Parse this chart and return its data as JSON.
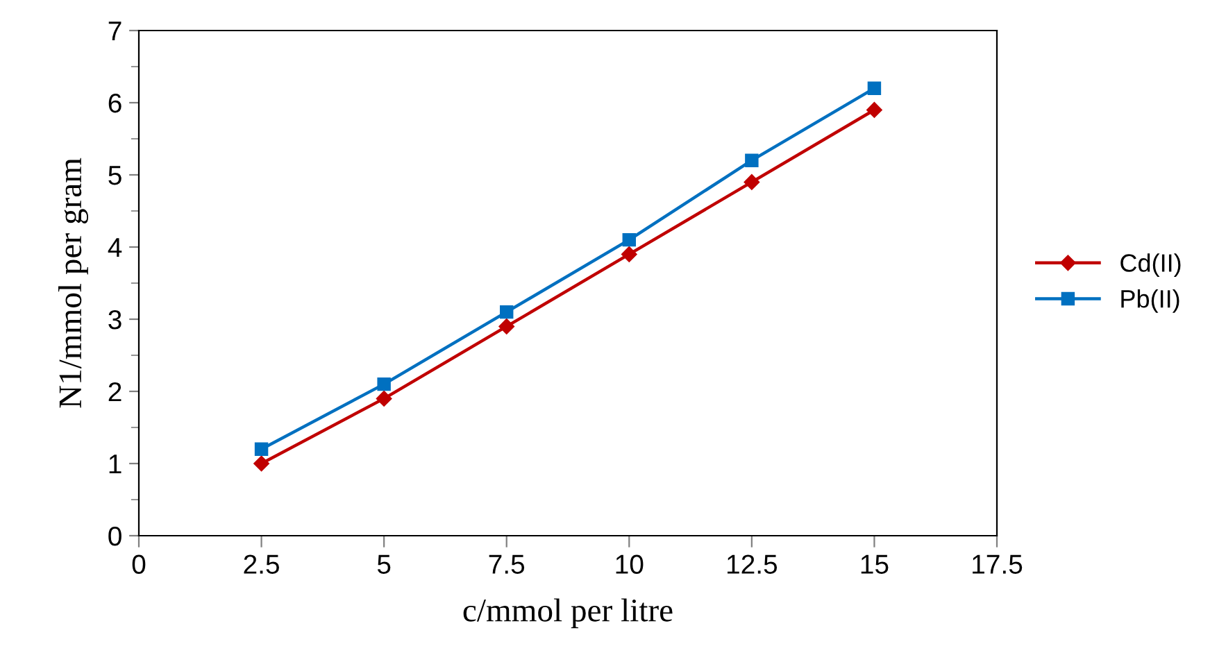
{
  "chart_data": {
    "type": "line",
    "xlabel": "c/mmol per litre",
    "ylabel": "N1/mmol per gram",
    "x": [
      2.5,
      5,
      7.5,
      10,
      12.5,
      15
    ],
    "series": [
      {
        "name": "Cd(II)",
        "color": "#c00000",
        "marker": "diamond",
        "values": [
          1.0,
          1.9,
          2.9,
          3.9,
          4.9,
          5.9
        ]
      },
      {
        "name": "Pb(II)",
        "color": "#0070c0",
        "marker": "square",
        "values": [
          1.2,
          2.1,
          3.1,
          4.1,
          5.2,
          6.2
        ]
      }
    ],
    "xlim": [
      0,
      17.5
    ],
    "xticks": [
      0,
      2.5,
      5,
      7.5,
      10,
      12.5,
      15,
      17.5
    ],
    "ylim": [
      0,
      7
    ],
    "yticks": [
      0,
      1,
      2,
      3,
      4,
      5,
      6,
      7
    ],
    "grid": false,
    "legend": "right",
    "line_style": "solid"
  }
}
